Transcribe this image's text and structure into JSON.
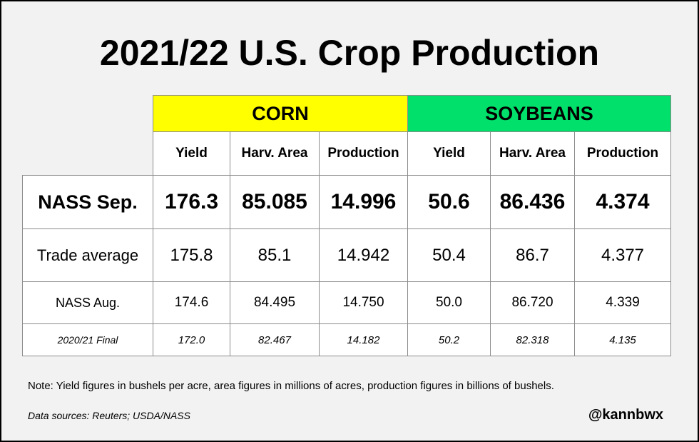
{
  "title": "2021/22 U.S. Crop Production",
  "table": {
    "groups": [
      "CORN",
      "SOYBEANS"
    ],
    "columns": [
      "Yield",
      "Harv. Area",
      "Production",
      "Yield",
      "Harv. Area",
      "Production"
    ],
    "rows": [
      [
        "NASS Sep.",
        "176.3",
        "85.085",
        "14.996",
        "50.6",
        "86.436",
        "4.374"
      ],
      [
        "Trade average",
        "175.8",
        "85.1",
        "14.942",
        "50.4",
        "86.7",
        "4.377"
      ],
      [
        "NASS Aug.",
        "174.6",
        "84.495",
        "14.750",
        "50.0",
        "86.720",
        "4.339"
      ],
      [
        "2020/21 Final",
        "172.0",
        "82.467",
        "14.182",
        "50.2",
        "82.318",
        "4.135"
      ]
    ]
  },
  "note": "Note: Yield figures in bushels per acre, area figures in millions of acres, production figures in billions of bushels.",
  "source": "Data sources: Reuters; USDA/NASS",
  "handle": "@kannbwx"
}
